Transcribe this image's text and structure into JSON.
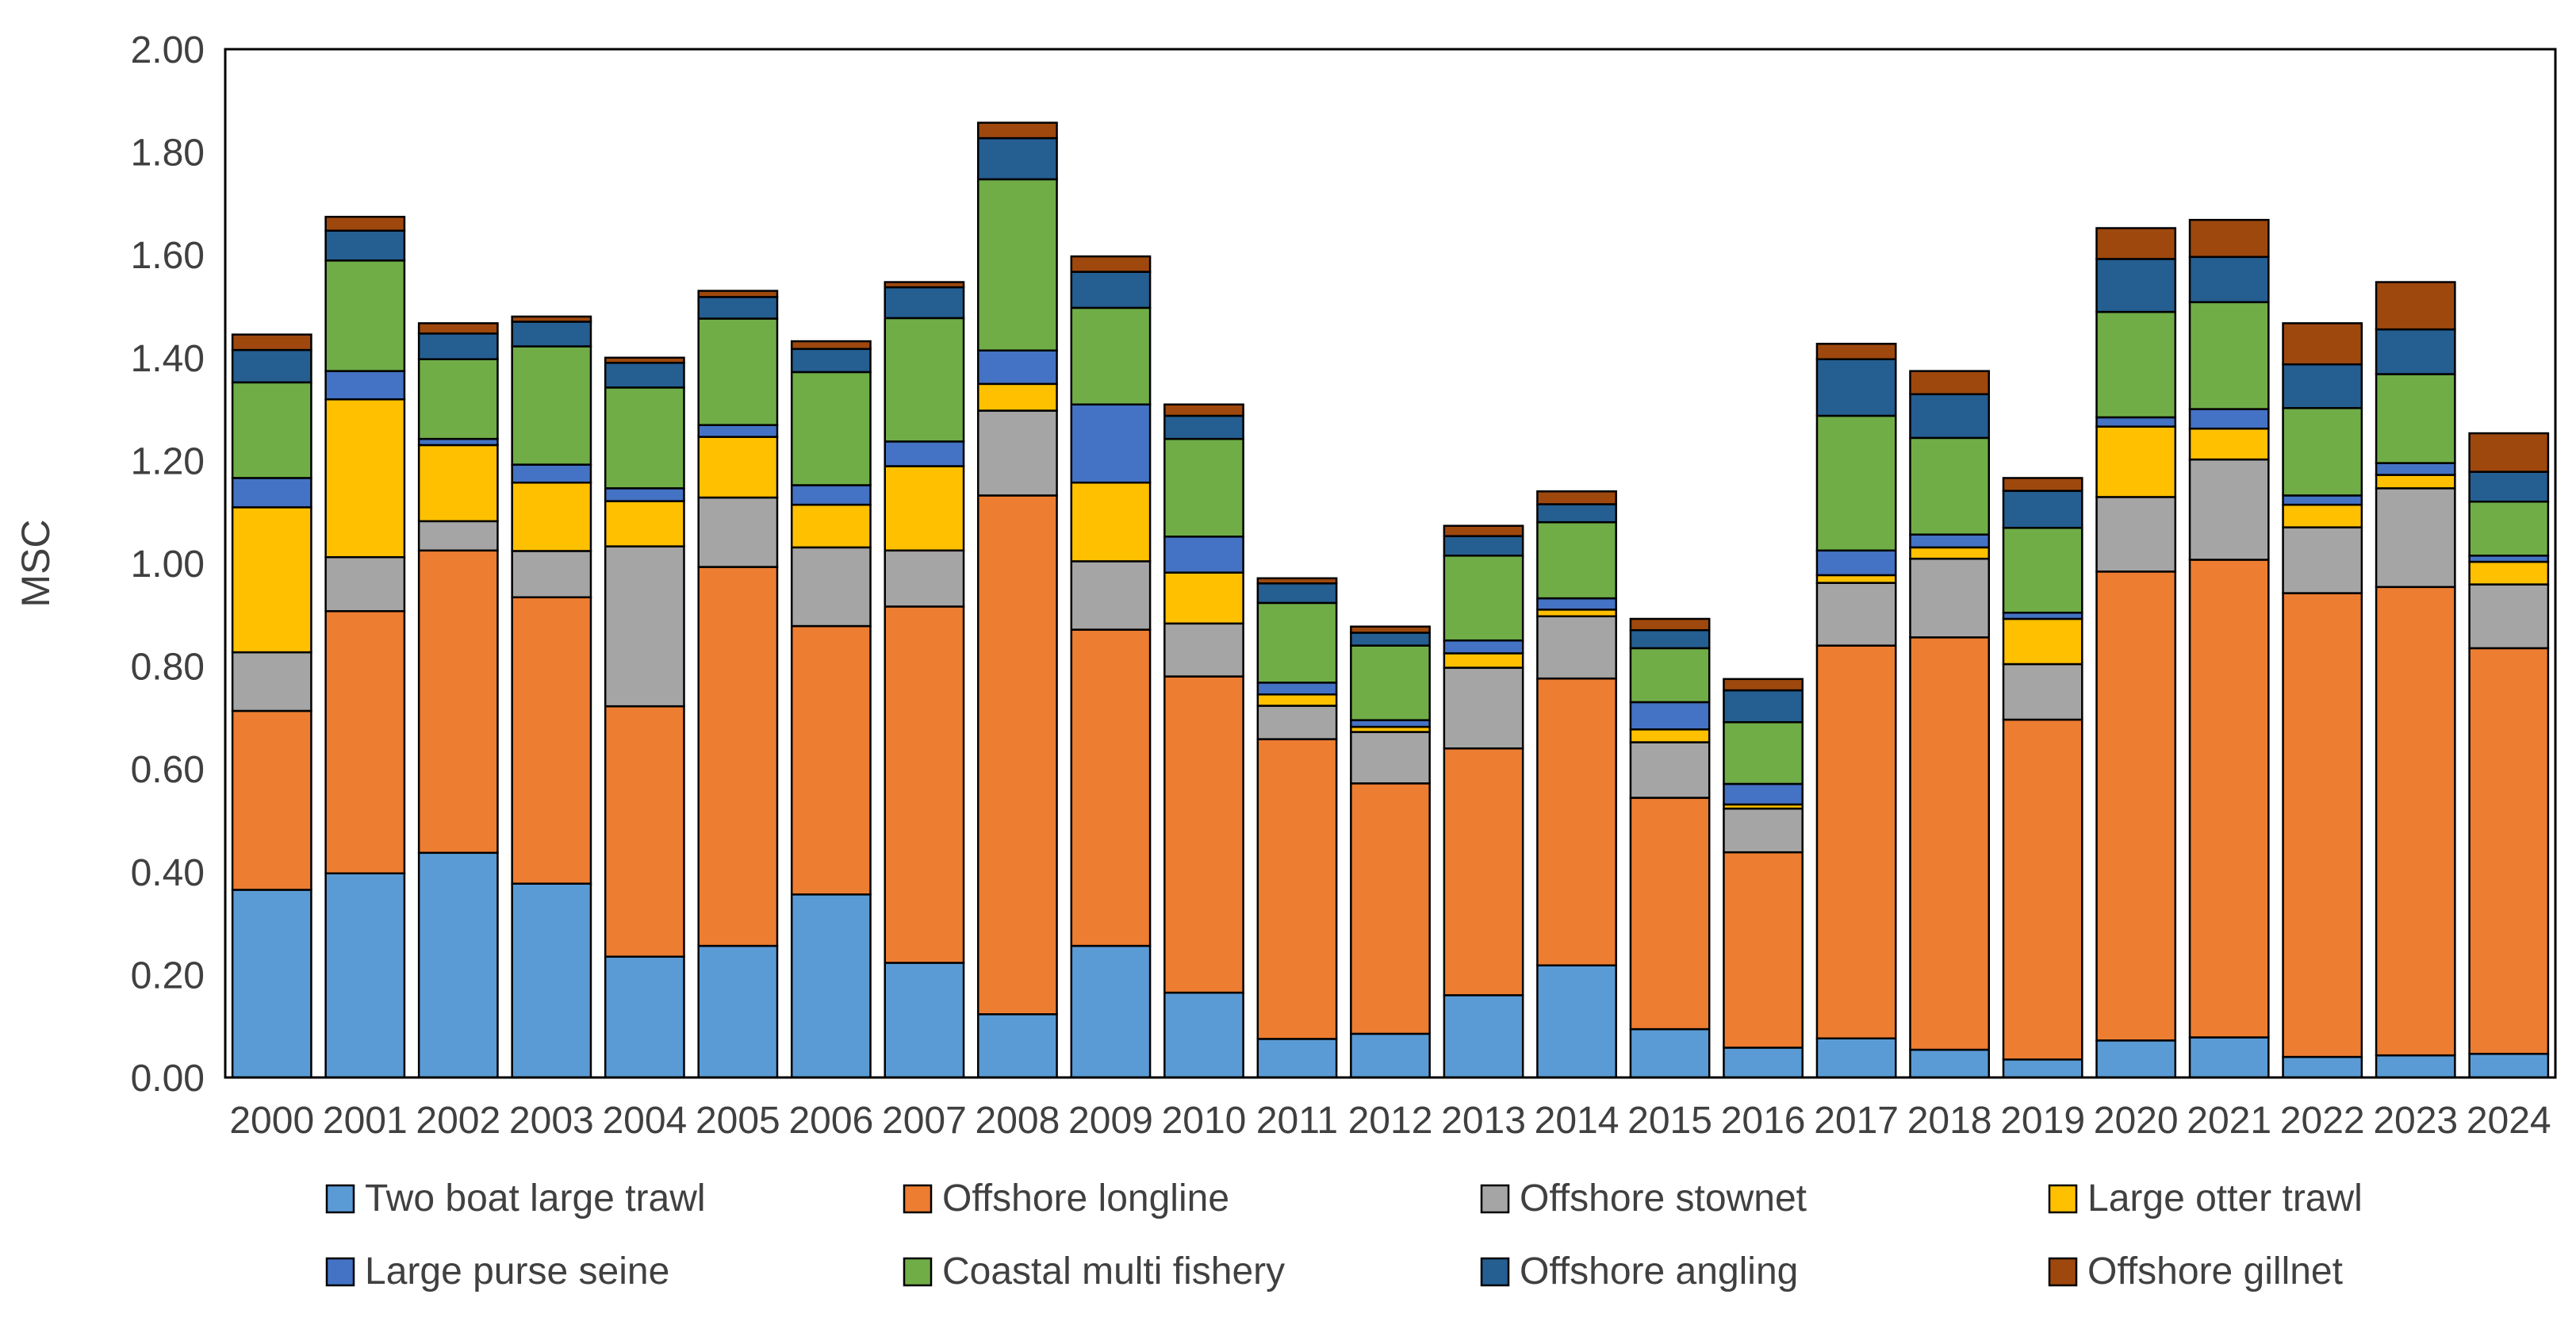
{
  "chart_data": {
    "type": "bar",
    "stacked": true,
    "title": "",
    "xlabel": "",
    "ylabel": "MSC",
    "ylim": [
      0,
      2.0
    ],
    "yticks": [
      "0.00",
      "0.20",
      "0.40",
      "0.60",
      "0.80",
      "1.00",
      "1.20",
      "1.40",
      "1.60",
      "1.80",
      "2.00"
    ],
    "grid": false,
    "legend_position": "bottom",
    "categories": [
      "2000",
      "2001",
      "2002",
      "2003",
      "2004",
      "2005",
      "2006",
      "2007",
      "2008",
      "2009",
      "2010",
      "2011",
      "2012",
      "2013",
      "2014",
      "2015",
      "2016",
      "2017",
      "2018",
      "2019",
      "2020",
      "2021",
      "2022",
      "2023",
      "2024"
    ],
    "series": [
      {
        "name": "Two boat large trawl",
        "color": "#5b9bd5",
        "values": [
          0.365,
          0.397,
          0.437,
          0.377,
          0.235,
          0.256,
          0.356,
          0.223,
          0.123,
          0.256,
          0.165,
          0.075,
          0.085,
          0.16,
          0.218,
          0.094,
          0.058,
          0.076,
          0.054,
          0.035,
          0.072,
          0.078,
          0.04,
          0.043,
          0.046
        ]
      },
      {
        "name": "Offshore longline",
        "color": "#ed7d31",
        "values": [
          0.348,
          0.51,
          0.588,
          0.557,
          0.487,
          0.737,
          0.522,
          0.693,
          1.009,
          0.615,
          0.615,
          0.583,
          0.487,
          0.48,
          0.558,
          0.45,
          0.38,
          0.764,
          0.802,
          0.661,
          0.912,
          0.929,
          0.902,
          0.911,
          0.789
        ]
      },
      {
        "name": "Offshore stownet",
        "color": "#a5a5a5",
        "values": [
          0.114,
          0.105,
          0.057,
          0.09,
          0.311,
          0.135,
          0.153,
          0.109,
          0.165,
          0.133,
          0.103,
          0.065,
          0.1,
          0.157,
          0.121,
          0.108,
          0.085,
          0.122,
          0.153,
          0.108,
          0.145,
          0.195,
          0.128,
          0.192,
          0.124
        ]
      },
      {
        "name": "Large otter trawl",
        "color": "#ffc000",
        "values": [
          0.282,
          0.307,
          0.148,
          0.133,
          0.088,
          0.118,
          0.083,
          0.164,
          0.052,
          0.153,
          0.099,
          0.022,
          0.01,
          0.028,
          0.013,
          0.025,
          0.008,
          0.015,
          0.022,
          0.088,
          0.137,
          0.06,
          0.044,
          0.026,
          0.044
        ]
      },
      {
        "name": "Large purse seine",
        "color": "#4472c4",
        "values": [
          0.057,
          0.055,
          0.012,
          0.035,
          0.025,
          0.023,
          0.038,
          0.048,
          0.065,
          0.152,
          0.07,
          0.023,
          0.013,
          0.025,
          0.022,
          0.053,
          0.04,
          0.048,
          0.025,
          0.012,
          0.018,
          0.038,
          0.018,
          0.023,
          0.012
        ]
      },
      {
        "name": "Coastal multi fishery",
        "color": "#70ad47",
        "values": [
          0.186,
          0.215,
          0.155,
          0.23,
          0.196,
          0.207,
          0.22,
          0.24,
          0.333,
          0.188,
          0.19,
          0.155,
          0.145,
          0.165,
          0.148,
          0.105,
          0.12,
          0.262,
          0.188,
          0.165,
          0.205,
          0.208,
          0.17,
          0.173,
          0.105
        ]
      },
      {
        "name": "Offshore angling",
        "color": "#255e91",
        "values": [
          0.063,
          0.058,
          0.05,
          0.048,
          0.048,
          0.042,
          0.045,
          0.06,
          0.08,
          0.07,
          0.045,
          0.038,
          0.025,
          0.038,
          0.035,
          0.035,
          0.062,
          0.11,
          0.085,
          0.072,
          0.103,
          0.088,
          0.085,
          0.087,
          0.058
        ]
      },
      {
        "name": "Offshore gillnet",
        "color": "#9e480e",
        "values": [
          0.03,
          0.027,
          0.02,
          0.01,
          0.01,
          0.012,
          0.015,
          0.01,
          0.03,
          0.03,
          0.022,
          0.01,
          0.012,
          0.02,
          0.025,
          0.022,
          0.022,
          0.03,
          0.045,
          0.025,
          0.06,
          0.072,
          0.08,
          0.092,
          0.075
        ]
      }
    ]
  }
}
